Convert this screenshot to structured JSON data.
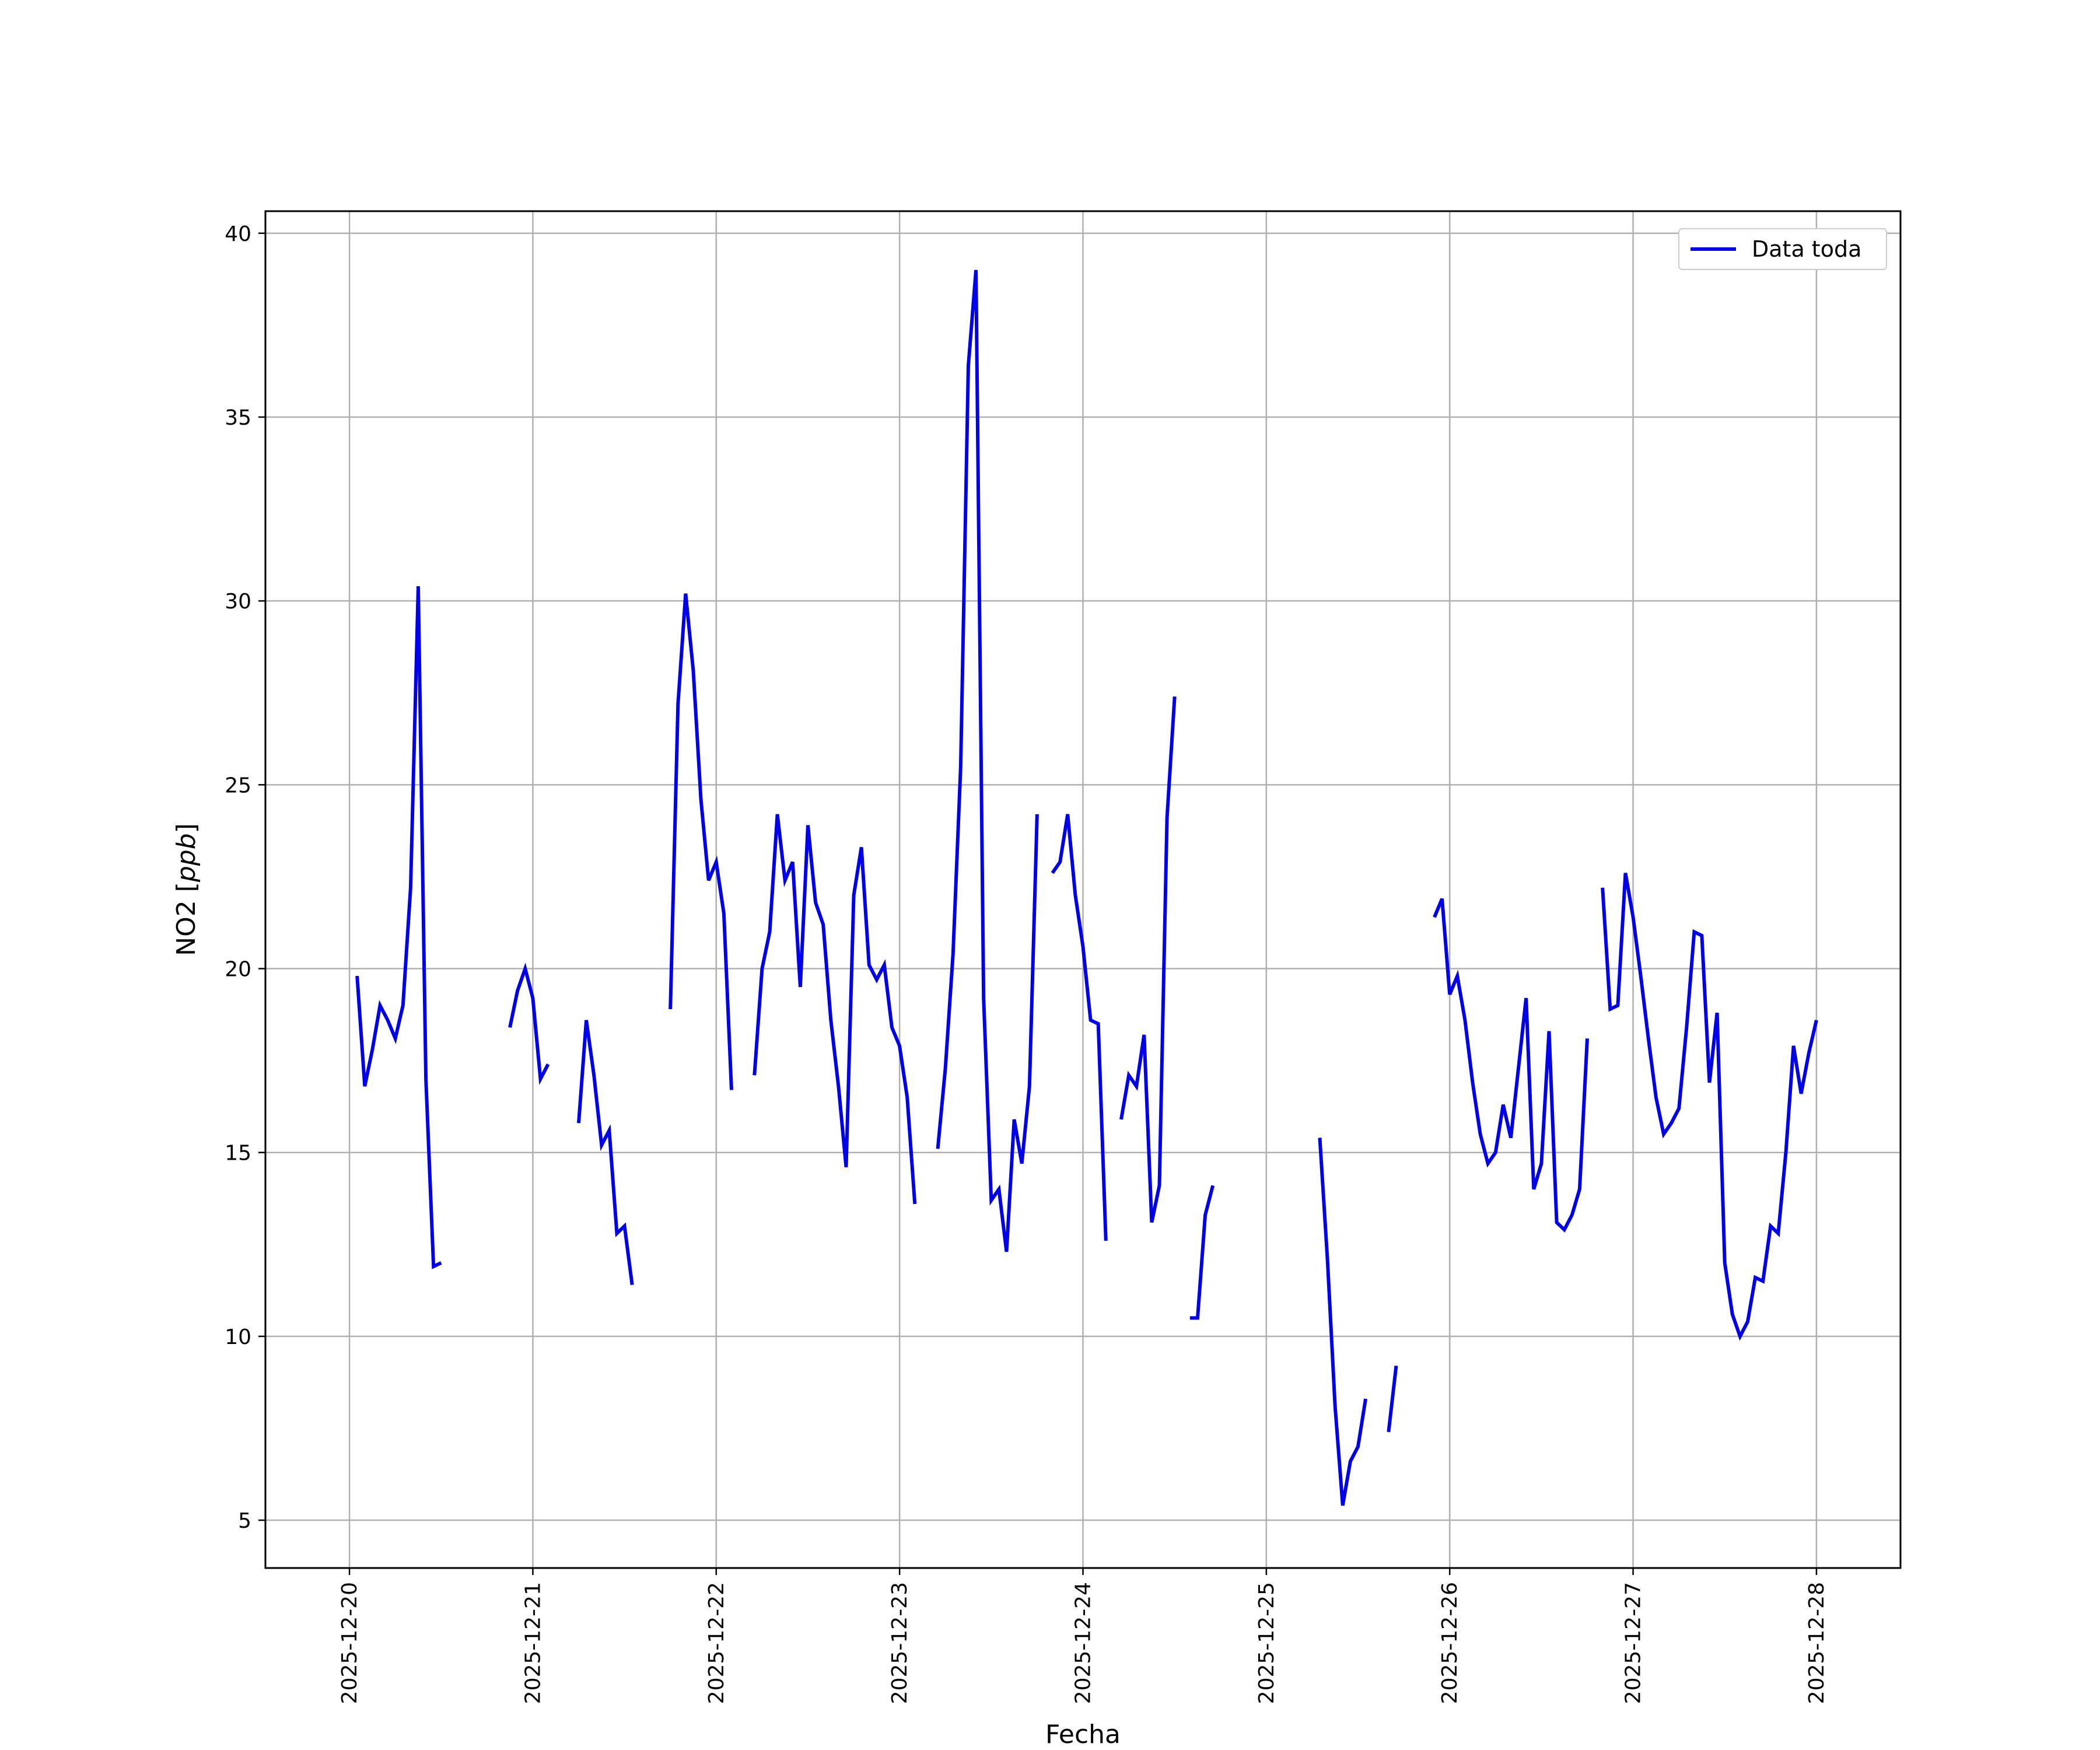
{
  "chart_data": {
    "type": "line",
    "xlabel": "Fecha",
    "ylabel": "NO2 [ppb]",
    "ylabel_main": "NO2 [",
    "ylabel_unit": "ppb",
    "ylabel_close": "]",
    "xlim": [
      "2025-12-19T13:00",
      "2025-12-28T11:00"
    ],
    "ylim": [
      3.7,
      40.6
    ],
    "x_ticks": [
      "2025-12-20",
      "2025-12-21",
      "2025-12-22",
      "2025-12-23",
      "2025-12-24",
      "2025-12-25",
      "2025-12-26",
      "2025-12-27",
      "2025-12-28"
    ],
    "y_ticks": [
      5,
      10,
      15,
      20,
      25,
      30,
      35,
      40
    ],
    "grid": true,
    "legend_position": "top-right",
    "colors": {
      "line": "#0000ee",
      "grid": "#b0b0b0",
      "axes": "#000000"
    },
    "series": [
      {
        "name": "Data toda",
        "segments": [
          [
            [
              "2025-12-20T01:00",
              19.8
            ],
            [
              "2025-12-20T02:00",
              16.8
            ],
            [
              "2025-12-20T03:00",
              17.8
            ],
            [
              "2025-12-20T04:00",
              19.0
            ],
            [
              "2025-12-20T05:00",
              18.6
            ],
            [
              "2025-12-20T06:00",
              18.1
            ],
            [
              "2025-12-20T07:00",
              19.0
            ],
            [
              "2025-12-20T08:00",
              22.2
            ],
            [
              "2025-12-20T09:00",
              30.4
            ],
            [
              "2025-12-20T10:00",
              17.0
            ],
            [
              "2025-12-20T11:00",
              11.9
            ],
            [
              "2025-12-20T12:00",
              12.0
            ]
          ],
          [
            [
              "2025-12-20T21:00",
              18.4
            ],
            [
              "2025-12-20T22:00",
              19.4
            ],
            [
              "2025-12-20T23:00",
              20.0
            ],
            [
              "2025-12-21T00:00",
              19.2
            ],
            [
              "2025-12-21T01:00",
              17.0
            ],
            [
              "2025-12-21T02:00",
              17.4
            ]
          ],
          [
            [
              "2025-12-21T06:00",
              15.8
            ],
            [
              "2025-12-21T07:00",
              18.6
            ],
            [
              "2025-12-21T08:00",
              17.1
            ],
            [
              "2025-12-21T09:00",
              15.2
            ],
            [
              "2025-12-21T10:00",
              15.6
            ],
            [
              "2025-12-21T11:00",
              12.8
            ],
            [
              "2025-12-21T12:00",
              13.0
            ],
            [
              "2025-12-21T13:00",
              11.4
            ]
          ],
          [
            [
              "2025-12-21T18:00",
              18.9
            ],
            [
              "2025-12-21T19:00",
              27.2
            ],
            [
              "2025-12-21T20:00",
              30.2
            ],
            [
              "2025-12-21T21:00",
              28.1
            ],
            [
              "2025-12-21T22:00",
              24.6
            ],
            [
              "2025-12-21T23:00",
              22.4
            ],
            [
              "2025-12-22T00:00",
              22.9
            ],
            [
              "2025-12-22T01:00",
              21.5
            ],
            [
              "2025-12-22T02:00",
              16.7
            ]
          ],
          [
            [
              "2025-12-22T05:00",
              17.1
            ],
            [
              "2025-12-22T06:00",
              20.0
            ],
            [
              "2025-12-22T07:00",
              21.0
            ],
            [
              "2025-12-22T08:00",
              24.2
            ],
            [
              "2025-12-22T09:00",
              22.4
            ],
            [
              "2025-12-22T10:00",
              22.9
            ],
            [
              "2025-12-22T11:00",
              19.5
            ],
            [
              "2025-12-22T12:00",
              23.9
            ],
            [
              "2025-12-22T13:00",
              21.8
            ],
            [
              "2025-12-22T14:00",
              21.2
            ],
            [
              "2025-12-22T15:00",
              18.6
            ],
            [
              "2025-12-22T16:00",
              16.8
            ],
            [
              "2025-12-22T17:00",
              14.6
            ],
            [
              "2025-12-22T18:00",
              22.0
            ],
            [
              "2025-12-22T19:00",
              23.3
            ],
            [
              "2025-12-22T20:00",
              20.1
            ],
            [
              "2025-12-22T21:00",
              19.7
            ],
            [
              "2025-12-22T22:00",
              20.1
            ],
            [
              "2025-12-22T23:00",
              18.4
            ],
            [
              "2025-12-23T00:00",
              17.9
            ],
            [
              "2025-12-23T01:00",
              16.5
            ],
            [
              "2025-12-23T02:00",
              13.6
            ]
          ],
          [
            [
              "2025-12-23T05:00",
              15.1
            ],
            [
              "2025-12-23T06:00",
              17.3
            ],
            [
              "2025-12-23T07:00",
              20.4
            ],
            [
              "2025-12-23T08:00",
              25.5
            ],
            [
              "2025-12-23T09:00",
              36.4
            ],
            [
              "2025-12-23T10:00",
              39.0
            ],
            [
              "2025-12-23T11:00",
              19.2
            ],
            [
              "2025-12-23T12:00",
              13.7
            ],
            [
              "2025-12-23T13:00",
              14.0
            ],
            [
              "2025-12-23T14:00",
              12.3
            ],
            [
              "2025-12-23T15:00",
              15.9
            ],
            [
              "2025-12-23T16:00",
              14.7
            ],
            [
              "2025-12-23T17:00",
              16.8
            ],
            [
              "2025-12-23T18:00",
              24.2
            ]
          ],
          [
            [
              "2025-12-23T20:00",
              22.6
            ],
            [
              "2025-12-23T21:00",
              22.9
            ],
            [
              "2025-12-23T22:00",
              24.2
            ],
            [
              "2025-12-23T23:00",
              22.0
            ],
            [
              "2025-12-24T00:00",
              20.6
            ],
            [
              "2025-12-24T01:00",
              18.6
            ],
            [
              "2025-12-24T02:00",
              18.5
            ],
            [
              "2025-12-24T03:00",
              12.6
            ]
          ],
          [
            [
              "2025-12-24T05:00",
              15.9
            ],
            [
              "2025-12-24T06:00",
              17.1
            ],
            [
              "2025-12-24T07:00",
              16.8
            ],
            [
              "2025-12-24T08:00",
              18.2
            ],
            [
              "2025-12-24T09:00",
              13.1
            ],
            [
              "2025-12-24T10:00",
              14.1
            ],
            [
              "2025-12-24T11:00",
              24.1
            ],
            [
              "2025-12-24T12:00",
              27.4
            ]
          ],
          [
            [
              "2025-12-24T14:00",
              10.5
            ],
            [
              "2025-12-24T15:00",
              10.5
            ],
            [
              "2025-12-24T16:00",
              13.3
            ],
            [
              "2025-12-24T17:00",
              14.1
            ]
          ],
          [
            [
              "2025-12-25T07:00",
              15.4
            ],
            [
              "2025-12-25T08:00",
              12.1
            ],
            [
              "2025-12-25T09:00",
              8.1
            ],
            [
              "2025-12-25T10:00",
              5.4
            ],
            [
              "2025-12-25T11:00",
              6.6
            ],
            [
              "2025-12-25T12:00",
              7.0
            ],
            [
              "2025-12-25T13:00",
              8.3
            ]
          ],
          [
            [
              "2025-12-25T16:00",
              7.4
            ],
            [
              "2025-12-25T17:00",
              9.2
            ]
          ],
          [
            [
              "2025-12-25T22:00",
              21.4
            ],
            [
              "2025-12-25T23:00",
              21.9
            ],
            [
              "2025-12-26T00:00",
              19.3
            ],
            [
              "2025-12-26T01:00",
              19.8
            ],
            [
              "2025-12-26T02:00",
              18.6
            ],
            [
              "2025-12-26T03:00",
              16.9
            ],
            [
              "2025-12-26T04:00",
              15.5
            ],
            [
              "2025-12-26T05:00",
              14.7
            ],
            [
              "2025-12-26T06:00",
              15.0
            ],
            [
              "2025-12-26T07:00",
              16.3
            ],
            [
              "2025-12-26T08:00",
              15.4
            ],
            [
              "2025-12-26T09:00",
              17.3
            ],
            [
              "2025-12-26T10:00",
              19.2
            ],
            [
              "2025-12-26T11:00",
              14.0
            ],
            [
              "2025-12-26T12:00",
              14.7
            ],
            [
              "2025-12-26T13:00",
              18.3
            ],
            [
              "2025-12-26T14:00",
              13.1
            ],
            [
              "2025-12-26T15:00",
              12.9
            ],
            [
              "2025-12-26T16:00",
              13.3
            ],
            [
              "2025-12-26T17:00",
              14.0
            ],
            [
              "2025-12-26T18:00",
              18.1
            ]
          ],
          [
            [
              "2025-12-26T20:00",
              22.2
            ],
            [
              "2025-12-26T21:00",
              18.9
            ],
            [
              "2025-12-26T22:00",
              19.0
            ],
            [
              "2025-12-26T23:00",
              22.6
            ],
            [
              "2025-12-27T00:00",
              21.4
            ],
            [
              "2025-12-27T01:00",
              19.8
            ],
            [
              "2025-12-27T02:00",
              18.1
            ],
            [
              "2025-12-27T03:00",
              16.5
            ],
            [
              "2025-12-27T04:00",
              15.5
            ],
            [
              "2025-12-27T05:00",
              15.8
            ],
            [
              "2025-12-27T06:00",
              16.2
            ],
            [
              "2025-12-27T07:00",
              18.4
            ],
            [
              "2025-12-27T08:00",
              21.0
            ],
            [
              "2025-12-27T09:00",
              20.9
            ],
            [
              "2025-12-27T10:00",
              16.9
            ],
            [
              "2025-12-27T11:00",
              18.8
            ],
            [
              "2025-12-27T12:00",
              12.0
            ],
            [
              "2025-12-27T13:00",
              10.6
            ],
            [
              "2025-12-27T14:00",
              10.0
            ],
            [
              "2025-12-27T15:00",
              10.4
            ],
            [
              "2025-12-27T16:00",
              11.6
            ],
            [
              "2025-12-27T17:00",
              11.5
            ],
            [
              "2025-12-27T18:00",
              13.0
            ],
            [
              "2025-12-27T19:00",
              12.8
            ],
            [
              "2025-12-27T20:00",
              15.0
            ],
            [
              "2025-12-27T21:00",
              17.9
            ],
            [
              "2025-12-27T22:00",
              16.6
            ],
            [
              "2025-12-27T23:00",
              17.7
            ],
            [
              "2025-12-28T00:00",
              18.6
            ]
          ]
        ]
      }
    ]
  }
}
